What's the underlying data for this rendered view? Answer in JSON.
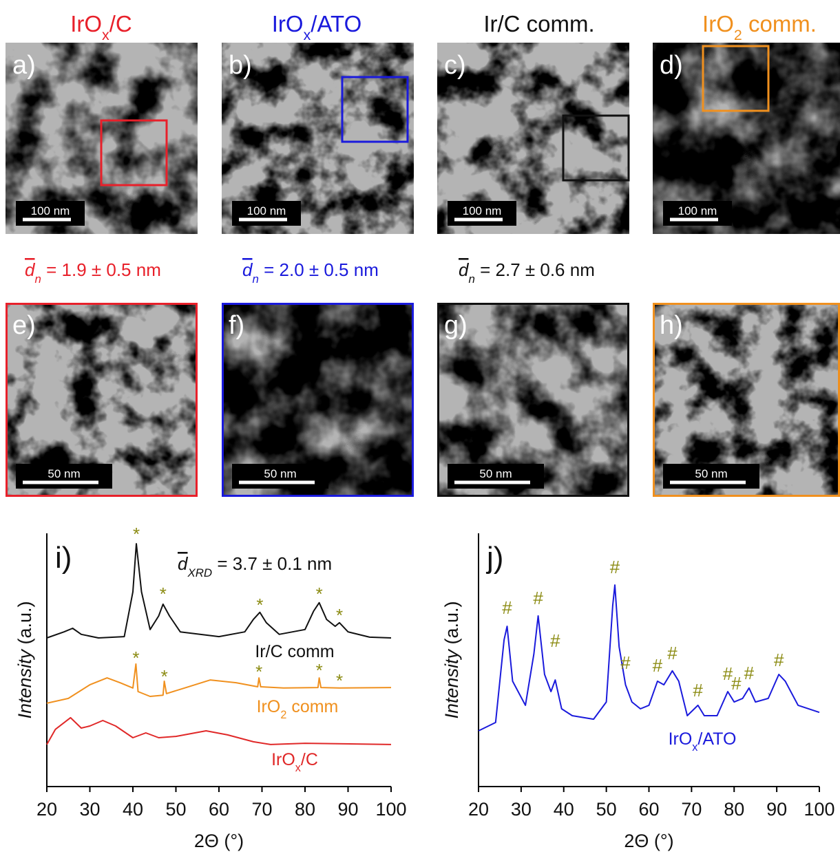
{
  "columns": [
    {
      "title": {
        "main": "IrO",
        "sub": "x",
        "rest": "/C"
      },
      "color": "#e8202a"
    },
    {
      "title": {
        "main": "IrO",
        "sub": "x",
        "rest": "/ATO"
      },
      "color": "#1a1adc"
    },
    {
      "title": {
        "main": "Ir/C comm.",
        "sub": "",
        "rest": ""
      },
      "color": "#111111"
    },
    {
      "title": {
        "main": "IrO",
        "sub": "2",
        "rest": " comm."
      },
      "color": "#f0901e"
    }
  ],
  "panels_top": [
    {
      "label": "a)",
      "scale_bar": "100 nm"
    },
    {
      "label": "b)",
      "scale_bar": "100 nm"
    },
    {
      "label": "c)",
      "scale_bar": "100 nm"
    },
    {
      "label": "d)",
      "scale_bar": "100 nm"
    }
  ],
  "sizes": [
    {
      "symbol": "d",
      "sub": "n",
      "text": " = 1.9 ± 0.5 nm"
    },
    {
      "symbol": "d",
      "sub": "n",
      "text": " = 2.0 ± 0.5 nm"
    },
    {
      "symbol": "d",
      "sub": "n",
      "text": " = 2.7 ± 0.6 nm"
    }
  ],
  "panels_bottom": [
    {
      "label": "e)",
      "scale_bar": "50 nm"
    },
    {
      "label": "f)",
      "scale_bar": "50 nm"
    },
    {
      "label": "g)",
      "scale_bar": "50 nm"
    },
    {
      "label": "h)",
      "scale_bar": "50 nm"
    }
  ],
  "chart_data": [
    {
      "type": "line",
      "panel_label": "i)",
      "annotation": {
        "symbol": "d",
        "sub": "XRD",
        "text": " = 3.7 ± 0.1 nm"
      },
      "x_label": "2Θ (°)",
      "y_label": {
        "italic": "Intensity",
        "rest": " (a.u.)"
      },
      "xlim": [
        20,
        100
      ],
      "xticks": [
        20,
        30,
        40,
        50,
        60,
        70,
        80,
        90,
        100
      ],
      "ylim": [
        0,
        100
      ],
      "marker_color": "#8c8c14",
      "series": [
        {
          "label": {
            "main": "Ir/C comm",
            "sub": "",
            "rest": ""
          },
          "color": "#111111",
          "x": [
            20,
            24,
            26,
            28,
            32,
            38,
            40,
            40.8,
            42,
            44,
            46,
            47,
            48.5,
            51,
            60,
            66,
            68,
            69.5,
            71,
            74,
            80,
            82,
            83.3,
            85,
            87,
            88,
            90,
            95,
            100
          ],
          "values": [
            58.7,
            61.1,
            62.5,
            60.1,
            58.7,
            59.2,
            76.9,
            95.9,
            76.9,
            62.0,
            67.4,
            72.0,
            67.4,
            61.1,
            59.2,
            61.1,
            66.0,
            68.8,
            64.7,
            60.1,
            62.0,
            69.3,
            72.6,
            66.0,
            63.3,
            64.7,
            61.1,
            59.0,
            58.7
          ],
          "markers": {
            "symbol": "*",
            "x": [
              40.8,
              47,
              69.5,
              83.3,
              88
            ],
            "y": [
              100,
              76.4,
              72.0,
              76.4,
              67.9
            ]
          }
        },
        {
          "label": {
            "main": "IrO",
            "sub": "2",
            "rest": " comm"
          },
          "color": "#f0901e",
          "x": [
            20,
            25,
            30,
            34,
            37,
            40,
            40.7,
            41.2,
            44,
            47,
            47.3,
            47.8,
            52,
            58,
            64,
            69,
            69.3,
            69.7,
            75,
            83,
            83.3,
            83.7,
            88,
            100
          ],
          "values": [
            32.9,
            34.8,
            40.2,
            42.9,
            41.0,
            38.9,
            48.4,
            37.5,
            35.6,
            36.1,
            41.6,
            36.7,
            38.9,
            42.1,
            41.0,
            39.4,
            42.9,
            39.4,
            38.9,
            39.1,
            42.9,
            39.1,
            38.9,
            39.1
          ],
          "markers": {
            "symbol": "*",
            "x": [
              40.7,
              47.3,
              69.3,
              83.3,
              88
            ],
            "y": [
              51.1,
              43.8,
              45.7,
              46.2,
              42.1
            ]
          }
        },
        {
          "label": {
            "main": "IrO",
            "sub": "x",
            "rest": "/C"
          },
          "color": "#e02828",
          "x": [
            20,
            22,
            25.5,
            28,
            30,
            33,
            36,
            40,
            43,
            46,
            50,
            57,
            62,
            68,
            72,
            80,
            100
          ],
          "values": [
            16.6,
            22.6,
            27.2,
            23.1,
            23.9,
            26.1,
            23.9,
            19.3,
            21.2,
            19.3,
            19.8,
            22.0,
            20.4,
            17.7,
            16.6,
            17.1,
            16.6
          ]
        }
      ]
    },
    {
      "type": "line",
      "panel_label": "j)",
      "x_label": "2Θ (°)",
      "y_label": {
        "italic": "Intensity",
        "rest": " (a.u.)"
      },
      "xlim": [
        20,
        100
      ],
      "xticks": [
        20,
        30,
        40,
        50,
        60,
        70,
        80,
        90,
        100
      ],
      "ylim": [
        0,
        100
      ],
      "marker_color": "#8c8c14",
      "series": [
        {
          "label": {
            "main": "IrO",
            "sub": "x",
            "rest": "/ATO"
          },
          "color": "#1a1adc",
          "x": [
            20,
            24,
            26,
            26.7,
            28,
            31,
            33,
            34,
            35.5,
            37,
            38,
            39.5,
            42,
            47,
            50,
            51.5,
            52,
            53,
            54.5,
            56,
            58,
            60,
            62,
            63.5,
            65.5,
            67,
            69,
            71.5,
            73,
            76,
            78.5,
            80,
            82,
            83.5,
            85,
            88,
            90.5,
            92,
            95,
            100
          ],
          "values": [
            22.0,
            25.3,
            57.9,
            63.3,
            41.6,
            32.1,
            52.4,
            67.4,
            44.3,
            37.5,
            42.1,
            30.7,
            28.0,
            26.6,
            33.4,
            71.5,
            79.6,
            55.2,
            40.2,
            33.4,
            30.7,
            32.1,
            41.6,
            40.2,
            45.7,
            41.6,
            28.0,
            32.1,
            28.0,
            28.0,
            37.5,
            33.4,
            34.8,
            38.9,
            33.4,
            34.8,
            44.3,
            41.6,
            32.1,
            29.3
          ],
          "markers": {
            "symbol": "#",
            "x": [
              26.7,
              34,
              38,
              52,
              54.5,
              62,
              65.5,
              71.5,
              78.5,
              80.5,
              83.5,
              90.5
            ],
            "y": [
              70.9,
              74.7,
              57.9,
              87.0,
              49.2,
              48.1,
              53.0,
              38.3,
              44.8,
              41.0,
              45.1,
              50.3
            ]
          }
        }
      ]
    }
  ]
}
